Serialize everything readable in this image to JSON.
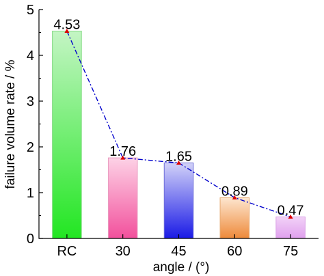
{
  "chart_data": {
    "type": "bar",
    "categories": [
      "RC",
      "30",
      "45",
      "60",
      "75"
    ],
    "values": [
      4.53,
      1.76,
      1.65,
      0.89,
      0.47
    ],
    "data_labels": [
      "4.53",
      "1.76",
      "1.65",
      "0.89",
      "0.47"
    ],
    "xlabel": "angle / (°)",
    "ylabel": "failure volume rate / %",
    "ylim": [
      0,
      5
    ],
    "yticks": [
      "0",
      "1",
      "2",
      "3",
      "4",
      "5"
    ],
    "grid": false,
    "legend": "none",
    "bar_colors": [
      {
        "top": "#c4f5c4",
        "bottom": "#22e622",
        "edge": "#7fd97f"
      },
      {
        "top": "#fdd2e6",
        "bottom": "#f2509c",
        "edge": "#e89cc0"
      },
      {
        "top": "#d2d2f8",
        "bottom": "#1a1ae6",
        "edge": "#6d6dd9"
      },
      {
        "top": "#fde6cf",
        "bottom": "#ee8a3a",
        "edge": "#e8aa72"
      },
      {
        "top": "#f2d2f7",
        "bottom": "#e0a0ee",
        "edge": "#d9a0e6"
      }
    ],
    "overlay_line": {
      "type": "line",
      "style": "dash-dot",
      "color": "#0000cc",
      "marker": "triangle",
      "marker_color": "#dd0000"
    }
  }
}
